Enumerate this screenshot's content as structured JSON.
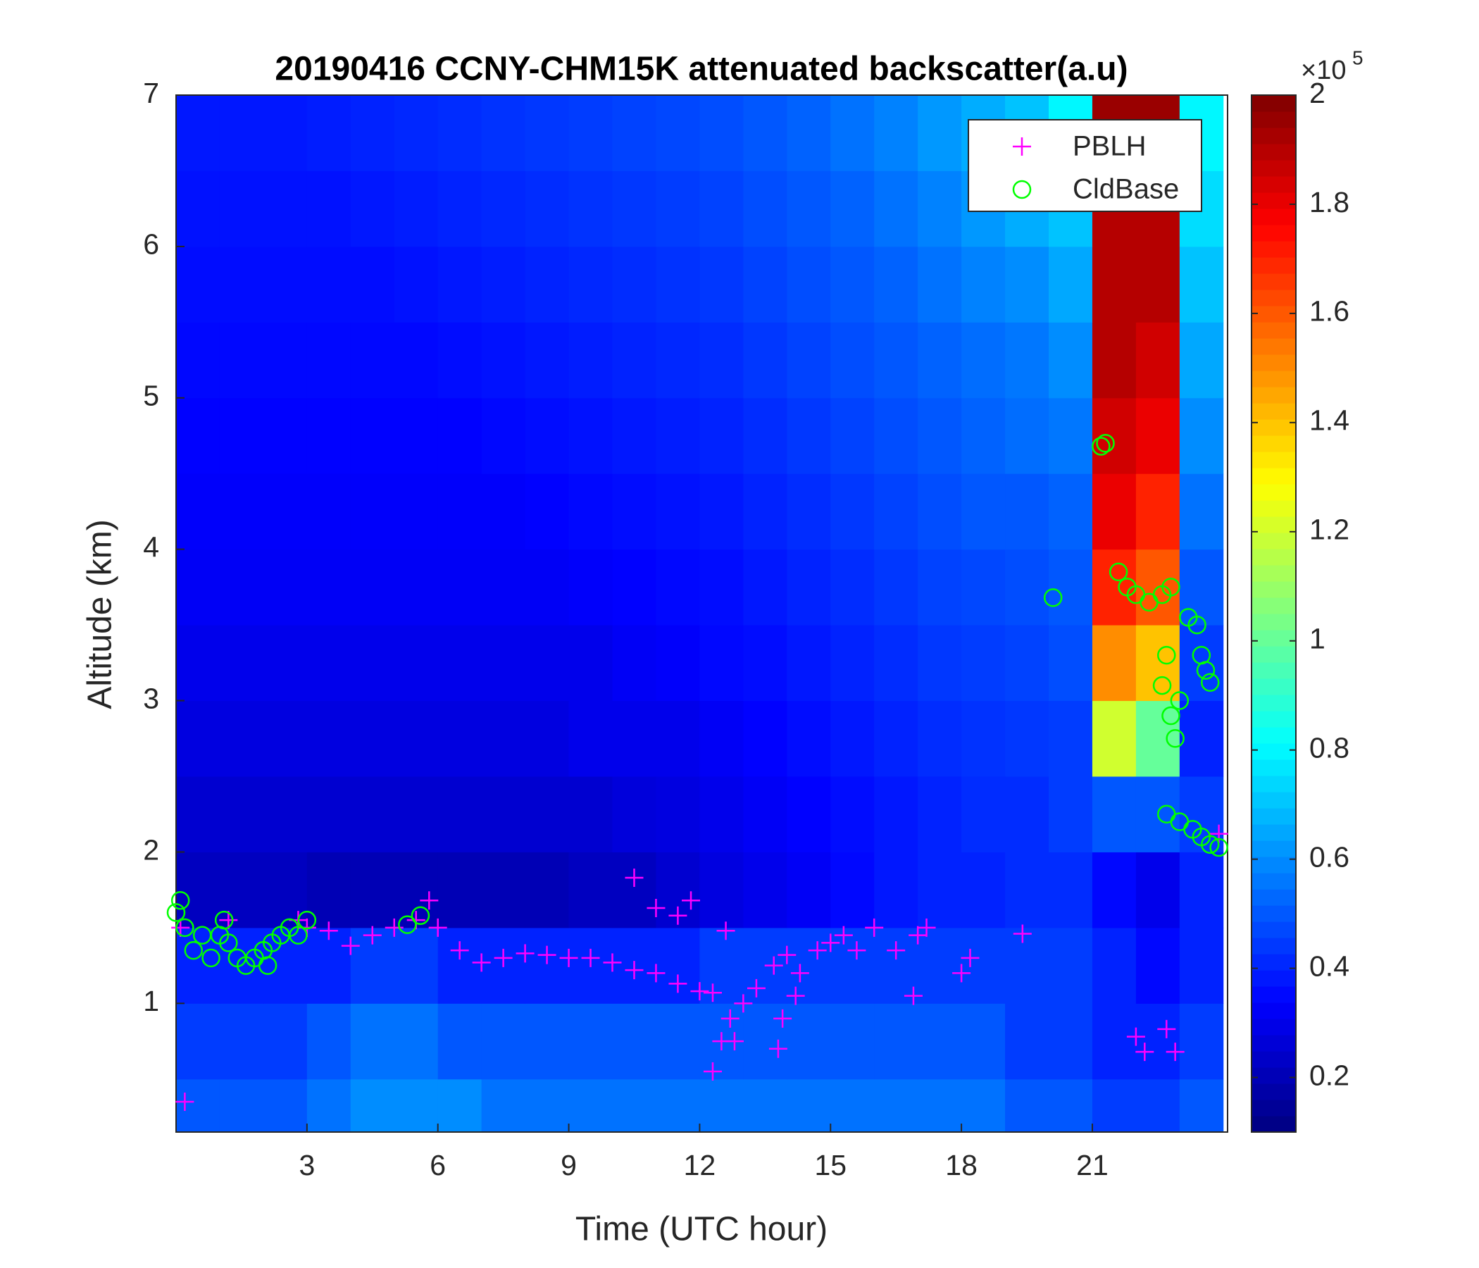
{
  "chart_data": {
    "type": "heatmap",
    "title": "20190416 CCNY-CHM15K attenuated backscatter(a.u)",
    "xlabel": "Time (UTC hour)",
    "ylabel": "Altitude (km)",
    "xlim": [
      0,
      24.1
    ],
    "ylim": [
      0.15,
      7
    ],
    "xticks": [
      3,
      6,
      9,
      12,
      15,
      18,
      21
    ],
    "yticks": [
      1,
      2,
      3,
      4,
      5,
      6,
      7
    ],
    "xbins": [
      0,
      1,
      2,
      3,
      4,
      5,
      6,
      7,
      8,
      9,
      10,
      11,
      12,
      13,
      14,
      15,
      16,
      17,
      18,
      19,
      20,
      21,
      22,
      23,
      24
    ],
    "ybins": [
      0.15,
      0.5,
      1,
      1.5,
      2,
      2.5,
      3,
      3.5,
      4,
      4.5,
      5,
      5.5,
      6,
      6.5,
      7
    ],
    "z": [
      [
        0.5,
        0.5,
        0.5,
        0.55,
        0.6,
        0.6,
        0.6,
        0.55,
        0.55,
        0.55,
        0.55,
        0.55,
        0.55,
        0.55,
        0.55,
        0.55,
        0.55,
        0.55,
        0.55,
        0.5,
        0.5,
        0.45,
        0.45,
        0.5
      ],
      [
        0.45,
        0.45,
        0.45,
        0.5,
        0.55,
        0.55,
        0.5,
        0.5,
        0.5,
        0.5,
        0.5,
        0.5,
        0.5,
        0.5,
        0.5,
        0.5,
        0.5,
        0.5,
        0.5,
        0.45,
        0.45,
        0.4,
        0.4,
        0.45
      ],
      [
        0.4,
        0.4,
        0.4,
        0.4,
        0.45,
        0.45,
        0.4,
        0.4,
        0.4,
        0.4,
        0.4,
        0.4,
        0.45,
        0.45,
        0.45,
        0.45,
        0.45,
        0.45,
        0.45,
        0.45,
        0.45,
        0.4,
        0.35,
        0.4
      ],
      [
        0.22,
        0.22,
        0.22,
        0.2,
        0.2,
        0.2,
        0.2,
        0.2,
        0.2,
        0.22,
        0.22,
        0.25,
        0.28,
        0.3,
        0.32,
        0.35,
        0.38,
        0.4,
        0.4,
        0.42,
        0.42,
        0.35,
        0.3,
        0.4
      ],
      [
        0.25,
        0.25,
        0.25,
        0.25,
        0.25,
        0.25,
        0.25,
        0.25,
        0.25,
        0.25,
        0.27,
        0.28,
        0.3,
        0.32,
        0.34,
        0.36,
        0.38,
        0.4,
        0.42,
        0.42,
        0.45,
        0.5,
        0.5,
        0.45
      ],
      [
        0.28,
        0.28,
        0.28,
        0.28,
        0.28,
        0.28,
        0.28,
        0.28,
        0.28,
        0.3,
        0.3,
        0.3,
        0.32,
        0.34,
        0.36,
        0.38,
        0.4,
        0.42,
        0.43,
        0.44,
        0.45,
        1.2,
        1.0,
        0.4
      ],
      [
        0.3,
        0.3,
        0.3,
        0.3,
        0.3,
        0.3,
        0.3,
        0.3,
        0.3,
        0.3,
        0.32,
        0.33,
        0.35,
        0.36,
        0.38,
        0.4,
        0.42,
        0.44,
        0.45,
        0.46,
        0.48,
        1.5,
        1.4,
        0.45
      ],
      [
        0.32,
        0.32,
        0.32,
        0.32,
        0.32,
        0.32,
        0.32,
        0.32,
        0.32,
        0.33,
        0.34,
        0.35,
        0.36,
        0.38,
        0.4,
        0.42,
        0.44,
        0.46,
        0.47,
        0.48,
        0.5,
        1.7,
        1.6,
        0.5
      ],
      [
        0.33,
        0.33,
        0.33,
        0.33,
        0.33,
        0.33,
        0.33,
        0.33,
        0.34,
        0.35,
        0.36,
        0.37,
        0.38,
        0.4,
        0.42,
        0.44,
        0.46,
        0.48,
        0.5,
        0.5,
        0.52,
        1.8,
        1.7,
        0.55
      ],
      [
        0.34,
        0.34,
        0.34,
        0.34,
        0.34,
        0.34,
        0.34,
        0.35,
        0.36,
        0.37,
        0.38,
        0.39,
        0.4,
        0.42,
        0.44,
        0.46,
        0.48,
        0.5,
        0.52,
        0.54,
        0.56,
        1.85,
        1.8,
        0.6
      ],
      [
        0.35,
        0.35,
        0.35,
        0.35,
        0.35,
        0.35,
        0.36,
        0.37,
        0.38,
        0.39,
        0.4,
        0.41,
        0.42,
        0.44,
        0.46,
        0.48,
        0.5,
        0.52,
        0.54,
        0.56,
        0.6,
        1.9,
        1.85,
        0.65
      ],
      [
        0.36,
        0.36,
        0.36,
        0.36,
        0.36,
        0.37,
        0.38,
        0.39,
        0.4,
        0.41,
        0.42,
        0.43,
        0.44,
        0.46,
        0.48,
        0.5,
        0.52,
        0.55,
        0.58,
        0.6,
        0.65,
        1.9,
        1.9,
        0.7
      ],
      [
        0.37,
        0.37,
        0.37,
        0.37,
        0.38,
        0.39,
        0.4,
        0.41,
        0.42,
        0.43,
        0.44,
        0.45,
        0.46,
        0.48,
        0.5,
        0.52,
        0.55,
        0.58,
        0.62,
        0.66,
        0.7,
        1.9,
        1.9,
        0.75
      ],
      [
        0.38,
        0.38,
        0.38,
        0.39,
        0.4,
        0.41,
        0.42,
        0.43,
        0.44,
        0.45,
        0.46,
        0.47,
        0.48,
        0.5,
        0.52,
        0.55,
        0.58,
        0.62,
        0.66,
        0.7,
        0.8,
        1.95,
        1.95,
        0.8
      ]
    ],
    "colorbar": {
      "colormap": "jet",
      "clim": [
        0.1,
        2
      ],
      "ticks": [
        0.2,
        0.4,
        0.6,
        0.8,
        1,
        1.2,
        1.4,
        1.6,
        1.8,
        2
      ],
      "multiplier": "×10",
      "exponent": "5"
    },
    "legend": "northeast",
    "series": [
      {
        "name": "PBLH",
        "marker": "+",
        "color": "#ff00ff",
        "x": [
          0.1,
          0.2,
          1.2,
          2.8,
          3,
          3.5,
          4,
          4.5,
          5,
          5.5,
          5.8,
          6,
          6.5,
          7,
          7.5,
          8,
          8.5,
          9,
          9.5,
          10,
          10.5,
          11,
          11.5,
          12,
          12.3,
          12.7,
          13,
          13.3,
          13.7,
          14,
          14.3,
          14.7,
          15,
          15.3,
          15.6,
          16,
          16.5,
          17,
          17.2,
          18,
          18.2,
          19.4,
          10.5,
          11,
          11.5,
          11.8,
          12.3,
          12.5,
          12.8,
          13.8,
          13.9,
          14.2,
          12.6,
          16.9,
          22,
          22.2,
          22.7,
          22.9,
          23.9
        ],
        "y": [
          1.5,
          0.35,
          1.55,
          1.55,
          1.5,
          1.48,
          1.38,
          1.45,
          1.5,
          1.55,
          1.68,
          1.5,
          1.35,
          1.27,
          1.3,
          1.33,
          1.32,
          1.3,
          1.3,
          1.27,
          1.22,
          1.2,
          1.13,
          1.08,
          1.07,
          0.9,
          1,
          1.1,
          1.25,
          1.32,
          1.2,
          1.35,
          1.4,
          1.45,
          1.35,
          1.5,
          1.35,
          1.45,
          1.5,
          1.2,
          1.3,
          1.46,
          1.83,
          1.63,
          1.58,
          1.68,
          0.55,
          0.75,
          0.75,
          0.7,
          0.9,
          1.05,
          1.48,
          1.05,
          0.78,
          0.68,
          0.83,
          0.68,
          2.12
        ]
      },
      {
        "name": "CldBase",
        "marker": "o",
        "color": "#00ff00",
        "x": [
          0,
          0.2,
          0.4,
          0.6,
          0.8,
          1,
          1.2,
          1.4,
          1.6,
          1.8,
          2,
          2.2,
          2.4,
          2.6,
          2.8,
          3,
          0.1,
          1.1,
          2.1,
          5.3,
          5.6,
          20.1,
          21.2,
          21.3,
          21.6,
          21.8,
          22,
          22.3,
          22.6,
          22.8,
          22.6,
          22.7,
          22.8,
          22.9,
          23,
          23.2,
          23.4,
          23.5,
          23.6,
          23.7,
          22.7,
          23,
          23.3,
          23.5,
          23.7,
          23.9
        ],
        "y": [
          1.6,
          1.5,
          1.35,
          1.45,
          1.3,
          1.45,
          1.4,
          1.3,
          1.25,
          1.3,
          1.35,
          1.4,
          1.45,
          1.5,
          1.45,
          1.55,
          1.68,
          1.55,
          1.25,
          1.52,
          1.58,
          3.68,
          4.68,
          4.7,
          3.85,
          3.75,
          3.7,
          3.65,
          3.7,
          3.75,
          3.1,
          3.3,
          2.9,
          2.75,
          3,
          3.55,
          3.5,
          3.3,
          3.2,
          3.12,
          2.25,
          2.2,
          2.15,
          2.1,
          2.05,
          2.03
        ]
      }
    ]
  }
}
